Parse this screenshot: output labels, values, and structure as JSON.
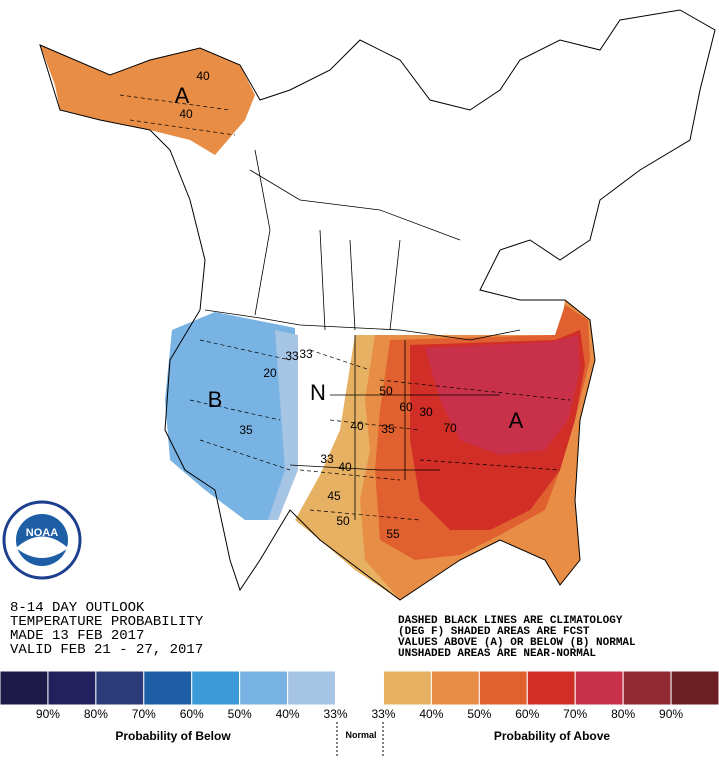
{
  "map": {
    "region_letters": [
      "A",
      "B",
      "N",
      "A"
    ],
    "contour_labels": [
      "40",
      "40",
      "33",
      "20",
      "35",
      "33",
      "50",
      "60",
      "40",
      "35",
      "30",
      "70",
      "33",
      "40",
      "45",
      "50",
      "55"
    ],
    "logo": "NOAA",
    "info": [
      "8-14 DAY OUTLOOK",
      "TEMPERATURE PROBABILITY",
      "MADE  13 FEB 2017",
      "VALID  FEB 21 - 27, 2017"
    ],
    "note": [
      "DASHED BLACK LINES ARE CLIMATOLOGY",
      "(DEG F) SHADED AREAS ARE FCST",
      "VALUES ABOVE (A) OR BELOW (B) NORMAL",
      "UNSHADED AREAS ARE NEAR-NORMAL"
    ]
  },
  "legend": {
    "colors": [
      "#1e1a48",
      "#23205e",
      "#2b3a78",
      "#1d5ea4",
      "#3c9ad9",
      "#79b3e3",
      "#a6c4e3",
      "#ffffff",
      "#e6b163",
      "#e88d45",
      "#e0602f",
      "#d02e26",
      "#c9304a",
      "#8e2a30",
      "#6b1f22"
    ],
    "labels": [
      "90%",
      "80%",
      "70%",
      "60%",
      "50%",
      "40%",
      "33%",
      "33%",
      "40%",
      "50%",
      "60%",
      "70%",
      "80%",
      "90%"
    ],
    "below": "Probability of Below",
    "normal": "Normal",
    "above": "Probability of Above"
  }
}
